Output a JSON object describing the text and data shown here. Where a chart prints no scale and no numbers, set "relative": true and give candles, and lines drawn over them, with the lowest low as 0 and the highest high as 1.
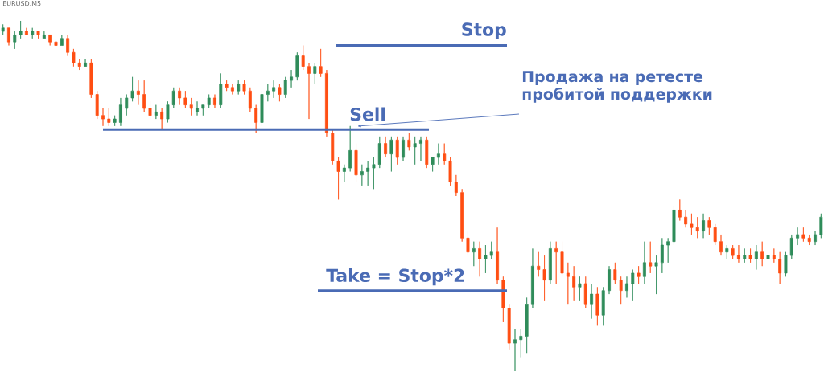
{
  "chart_data": {
    "type": "candlestick",
    "title": "EURUSD,M5",
    "relative": true,
    "categories": [
      null,
      null,
      null,
      null,
      null,
      null,
      null,
      null,
      null,
      null,
      null,
      null,
      null,
      null,
      null,
      null,
      null,
      null,
      null,
      null,
      null,
      null,
      null,
      null,
      null,
      null,
      null,
      null,
      null,
      null,
      null,
      null,
      null,
      null,
      null,
      null,
      null,
      null,
      null,
      null,
      null,
      null,
      null,
      null,
      null,
      null,
      null,
      null,
      null,
      null,
      null,
      null,
      null,
      null,
      null,
      null,
      null,
      null,
      null,
      null,
      null,
      null,
      null,
      null,
      null,
      null,
      null,
      null,
      null,
      null,
      null,
      null,
      null,
      null,
      null,
      null,
      null,
      null,
      null,
      null,
      null,
      null,
      null,
      null,
      null,
      null,
      null,
      null,
      null,
      null,
      null,
      null,
      null,
      null,
      null,
      null,
      null,
      null,
      null,
      null,
      null,
      null,
      null,
      null,
      null,
      null,
      null,
      null,
      null,
      null,
      null,
      null,
      null,
      null,
      null,
      null,
      null,
      null,
      null,
      null,
      null,
      null,
      null,
      null,
      null,
      null,
      null,
      null,
      null,
      null,
      null,
      null,
      null,
      null,
      null,
      null,
      null,
      null,
      null,
      null
    ],
    "ohlc": [
      [
        0.97,
        0.99,
        0.96,
        0.98
      ],
      [
        0.98,
        0.98,
        0.93,
        0.94
      ],
      [
        0.94,
        0.97,
        0.92,
        0.96
      ],
      [
        0.96,
        1.0,
        0.95,
        0.97
      ],
      [
        0.97,
        0.98,
        0.96,
        0.96
      ],
      [
        0.96,
        0.98,
        0.95,
        0.97
      ],
      [
        0.97,
        0.97,
        0.95,
        0.96
      ],
      [
        0.95,
        0.97,
        0.95,
        0.96
      ],
      [
        0.96,
        0.96,
        0.93,
        0.94
      ],
      [
        0.94,
        0.95,
        0.93,
        0.93
      ],
      [
        0.93,
        0.96,
        0.93,
        0.95
      ],
      [
        0.95,
        0.96,
        0.9,
        0.91
      ],
      [
        0.91,
        0.92,
        0.87,
        0.88
      ],
      [
        0.88,
        0.89,
        0.86,
        0.87
      ],
      [
        0.87,
        0.89,
        0.87,
        0.88
      ],
      [
        0.88,
        0.89,
        0.78,
        0.79
      ],
      [
        0.79,
        0.8,
        0.72,
        0.73
      ],
      [
        0.73,
        0.75,
        0.7,
        0.72
      ],
      [
        0.72,
        0.75,
        0.7,
        0.71
      ],
      [
        0.71,
        0.73,
        0.7,
        0.72
      ],
      [
        0.71,
        0.78,
        0.7,
        0.76
      ],
      [
        0.75,
        0.79,
        0.73,
        0.78
      ],
      [
        0.78,
        0.84,
        0.77,
        0.8
      ],
      [
        0.8,
        0.83,
        0.76,
        0.79
      ],
      [
        0.79,
        0.83,
        0.74,
        0.75
      ],
      [
        0.75,
        0.77,
        0.72,
        0.73
      ],
      [
        0.73,
        0.76,
        0.72,
        0.74
      ],
      [
        0.74,
        0.75,
        0.69,
        0.72
      ],
      [
        0.72,
        0.77,
        0.71,
        0.76
      ],
      [
        0.76,
        0.81,
        0.75,
        0.8
      ],
      [
        0.8,
        0.81,
        0.76,
        0.78
      ],
      [
        0.78,
        0.8,
        0.75,
        0.76
      ],
      [
        0.76,
        0.78,
        0.73,
        0.75
      ],
      [
        0.74,
        0.77,
        0.73,
        0.75
      ],
      [
        0.75,
        0.76,
        0.73,
        0.76
      ],
      [
        0.76,
        0.79,
        0.75,
        0.78
      ],
      [
        0.78,
        0.79,
        0.75,
        0.76
      ],
      [
        0.76,
        0.85,
        0.75,
        0.82
      ],
      [
        0.82,
        0.83,
        0.8,
        0.81
      ],
      [
        0.81,
        0.82,
        0.79,
        0.8
      ],
      [
        0.8,
        0.83,
        0.79,
        0.82
      ],
      [
        0.82,
        0.83,
        0.79,
        0.8
      ],
      [
        0.8,
        0.81,
        0.74,
        0.75
      ],
      [
        0.75,
        0.76,
        0.68,
        0.71
      ],
      [
        0.71,
        0.8,
        0.7,
        0.79
      ],
      [
        0.79,
        0.82,
        0.77,
        0.8
      ],
      [
        0.8,
        0.83,
        0.78,
        0.81
      ],
      [
        0.81,
        0.82,
        0.77,
        0.79
      ],
      [
        0.79,
        0.84,
        0.78,
        0.83
      ],
      [
        0.83,
        0.86,
        0.81,
        0.84
      ],
      [
        0.84,
        0.91,
        0.83,
        0.9
      ],
      [
        0.9,
        0.93,
        0.86,
        0.87
      ],
      [
        0.87,
        0.88,
        0.72,
        0.85
      ],
      [
        0.85,
        0.88,
        0.82,
        0.87
      ],
      [
        0.87,
        0.92,
        0.84,
        0.85
      ],
      [
        0.85,
        0.86,
        0.67,
        0.68
      ],
      [
        0.68,
        0.69,
        0.59,
        0.6
      ],
      [
        0.6,
        0.61,
        0.49,
        0.57
      ],
      [
        0.57,
        0.59,
        0.54,
        0.58
      ],
      [
        0.58,
        0.7,
        0.57,
        0.63
      ],
      [
        0.63,
        0.65,
        0.54,
        0.56
      ],
      [
        0.56,
        0.59,
        0.53,
        0.57
      ],
      [
        0.57,
        0.6,
        0.53,
        0.58
      ],
      [
        0.58,
        0.61,
        0.52,
        0.59
      ],
      [
        0.59,
        0.67,
        0.58,
        0.65
      ],
      [
        0.65,
        0.67,
        0.61,
        0.62
      ],
      [
        0.62,
        0.67,
        0.57,
        0.66
      ],
      [
        0.66,
        0.67,
        0.59,
        0.61
      ],
      [
        0.61,
        0.67,
        0.6,
        0.66
      ],
      [
        0.66,
        0.68,
        0.63,
        0.64
      ],
      [
        0.64,
        0.67,
        0.59,
        0.65
      ],
      [
        0.65,
        0.67,
        0.6,
        0.66
      ],
      [
        0.66,
        0.67,
        0.58,
        0.59
      ],
      [
        0.59,
        0.61,
        0.57,
        0.61
      ],
      [
        0.61,
        0.65,
        0.59,
        0.62
      ],
      [
        0.62,
        0.65,
        0.59,
        0.6
      ],
      [
        0.6,
        0.61,
        0.53,
        0.54
      ],
      [
        0.54,
        0.56,
        0.5,
        0.51
      ],
      [
        0.51,
        0.52,
        0.37,
        0.38
      ],
      [
        0.38,
        0.4,
        0.33,
        0.34
      ],
      [
        0.34,
        0.37,
        0.3,
        0.35
      ],
      [
        0.35,
        0.37,
        0.27,
        0.32
      ],
      [
        0.32,
        0.36,
        0.28,
        0.33
      ],
      [
        0.33,
        0.37,
        0.32,
        0.34
      ],
      [
        0.34,
        0.41,
        0.25,
        0.26
      ],
      [
        0.26,
        0.27,
        0.14,
        0.18
      ],
      [
        0.18,
        0.19,
        0.06,
        0.08
      ],
      [
        0.08,
        0.12,
        0.0,
        0.09
      ],
      [
        0.09,
        0.12,
        0.04,
        0.1
      ],
      [
        0.1,
        0.21,
        0.05,
        0.19
      ],
      [
        0.19,
        0.35,
        0.18,
        0.3
      ],
      [
        0.3,
        0.34,
        0.27,
        0.29
      ],
      [
        0.29,
        0.33,
        0.2,
        0.26
      ],
      [
        0.26,
        0.37,
        0.25,
        0.35
      ],
      [
        0.35,
        0.37,
        0.25,
        0.34
      ],
      [
        0.34,
        0.37,
        0.27,
        0.28
      ],
      [
        0.28,
        0.31,
        0.19,
        0.27
      ],
      [
        0.27,
        0.3,
        0.2,
        0.24
      ],
      [
        0.24,
        0.27,
        0.2,
        0.25
      ],
      [
        0.25,
        0.27,
        0.18,
        0.19
      ],
      [
        0.19,
        0.25,
        0.15,
        0.22
      ],
      [
        0.22,
        0.24,
        0.13,
        0.16
      ],
      [
        0.16,
        0.24,
        0.13,
        0.23
      ],
      [
        0.23,
        0.3,
        0.22,
        0.29
      ],
      [
        0.29,
        0.31,
        0.25,
        0.26
      ],
      [
        0.26,
        0.27,
        0.19,
        0.23
      ],
      [
        0.23,
        0.27,
        0.21,
        0.25
      ],
      [
        0.25,
        0.29,
        0.2,
        0.28
      ],
      [
        0.28,
        0.3,
        0.25,
        0.27
      ],
      [
        0.27,
        0.37,
        0.25,
        0.31
      ],
      [
        0.31,
        0.37,
        0.28,
        0.3
      ],
      [
        0.3,
        0.33,
        0.22,
        0.31
      ],
      [
        0.31,
        0.38,
        0.28,
        0.36
      ],
      [
        0.36,
        0.38,
        0.31,
        0.37
      ],
      [
        0.37,
        0.47,
        0.36,
        0.46
      ],
      [
        0.46,
        0.49,
        0.43,
        0.44
      ],
      [
        0.44,
        0.46,
        0.41,
        0.42
      ],
      [
        0.42,
        0.45,
        0.39,
        0.41
      ],
      [
        0.41,
        0.44,
        0.38,
        0.4
      ],
      [
        0.4,
        0.45,
        0.38,
        0.43
      ],
      [
        0.43,
        0.44,
        0.39,
        0.41
      ],
      [
        0.41,
        0.42,
        0.36,
        0.37
      ],
      [
        0.37,
        0.39,
        0.33,
        0.34
      ],
      [
        0.34,
        0.36,
        0.32,
        0.35
      ],
      [
        0.35,
        0.36,
        0.32,
        0.33
      ],
      [
        0.33,
        0.36,
        0.31,
        0.32
      ],
      [
        0.32,
        0.35,
        0.31,
        0.33
      ],
      [
        0.33,
        0.35,
        0.31,
        0.32
      ],
      [
        0.32,
        0.36,
        0.29,
        0.34
      ],
      [
        0.34,
        0.37,
        0.3,
        0.32
      ],
      [
        0.32,
        0.35,
        0.31,
        0.33
      ],
      [
        0.33,
        0.35,
        0.31,
        0.32
      ],
      [
        0.32,
        0.34,
        0.25,
        0.28
      ],
      [
        0.28,
        0.34,
        0.27,
        0.33
      ],
      [
        0.33,
        0.39,
        0.32,
        0.38
      ],
      [
        0.38,
        0.41,
        0.36,
        0.39
      ],
      [
        0.39,
        0.41,
        0.37,
        0.38
      ],
      [
        0.38,
        0.39,
        0.36,
        0.37
      ],
      [
        0.37,
        0.4,
        0.36,
        0.39
      ],
      [
        0.39,
        0.45,
        0.38,
        0.44
      ]
    ],
    "colors": [
      "#2f8c5a",
      "#ff4e12",
      "#2f8c5a",
      "#2f8c5a",
      "#ff4e12",
      "#2f8c5a",
      "#ff4e12",
      "#2f8c5a",
      "#ff4e12",
      "#ff4e12",
      "#2f8c5a",
      "#ff4e12",
      "#ff4e12",
      "#ff4e12",
      "#2f8c5a",
      "#ff4e12",
      "#ff4e12",
      "#ff4e12",
      "#ff4e12",
      "#2f8c5a",
      "#2f8c5a",
      "#2f8c5a",
      "#2f8c5a",
      "#ff4e12",
      "#ff4e12",
      "#ff4e12",
      "#2f8c5a",
      "#ff4e12",
      "#2f8c5a",
      "#2f8c5a",
      "#ff4e12",
      "#ff4e12",
      "#ff4e12",
      "#2f8c5a",
      "#2f8c5a",
      "#2f8c5a",
      "#ff4e12",
      "#2f8c5a",
      "#ff4e12",
      "#ff4e12",
      "#2f8c5a",
      "#ff4e12",
      "#ff4e12",
      "#ff4e12",
      "#2f8c5a",
      "#2f8c5a",
      "#2f8c5a",
      "#ff4e12",
      "#2f8c5a",
      "#2f8c5a",
      "#2f8c5a",
      "#ff4e12",
      "#ff4e12",
      "#2f8c5a",
      "#ff4e12",
      "#ff4e12",
      "#ff4e12",
      "#ff4e12",
      "#2f8c5a",
      "#2f8c5a",
      "#ff4e12",
      "#2f8c5a",
      "#2f8c5a",
      "#2f8c5a",
      "#2f8c5a",
      "#ff4e12",
      "#2f8c5a",
      "#ff4e12",
      "#2f8c5a",
      "#ff4e12",
      "#2f8c5a",
      "#2f8c5a",
      "#ff4e12",
      "#2f8c5a",
      "#2f8c5a",
      "#ff4e12",
      "#ff4e12",
      "#ff4e12",
      "#ff4e12",
      "#ff4e12",
      "#2f8c5a",
      "#ff4e12",
      "#2f8c5a",
      "#2f8c5a",
      "#ff4e12",
      "#ff4e12",
      "#ff4e12",
      "#2f8c5a",
      "#2f8c5a",
      "#2f8c5a",
      "#2f8c5a",
      "#ff4e12",
      "#ff4e12",
      "#2f8c5a",
      "#ff4e12",
      "#ff4e12",
      "#ff4e12",
      "#ff4e12",
      "#2f8c5a",
      "#ff4e12",
      "#2f8c5a",
      "#ff4e12",
      "#2f8c5a",
      "#2f8c5a",
      "#ff4e12",
      "#ff4e12",
      "#2f8c5a",
      "#2f8c5a",
      "#ff4e12",
      "#2f8c5a",
      "#ff4e12",
      "#2f8c5a",
      "#2f8c5a",
      "#2f8c5a",
      "#2f8c5a",
      "#ff4e12",
      "#ff4e12",
      "#ff4e12",
      "#ff4e12",
      "#2f8c5a",
      "#ff4e12",
      "#ff4e12",
      "#ff4e12",
      "#2f8c5a",
      "#ff4e12",
      "#ff4e12",
      "#2f8c5a",
      "#ff4e12",
      "#2f8c5a",
      "#ff4e12",
      "#2f8c5a",
      "#ff4e12",
      "#ff4e12",
      "#2f8c5a",
      "#2f8c5a",
      "#2f8c5a",
      "#ff4e12",
      "#ff4e12",
      "#2f8c5a",
      "#2f8c5a"
    ],
    "ref_lines": [
      {
        "axis": "y",
        "value": 0.93,
        "label": "Stop",
        "color": "#4a6bb5"
      },
      {
        "axis": "y",
        "value": 0.69,
        "label": "Sell",
        "color": "#4a6bb5"
      },
      {
        "axis": "y",
        "value": 0.23,
        "label": "Take = Stop*2",
        "color": "#4a6bb5"
      }
    ],
    "annotations": [
      "Продажа на ретесте пробитой поддержки"
    ]
  }
}
